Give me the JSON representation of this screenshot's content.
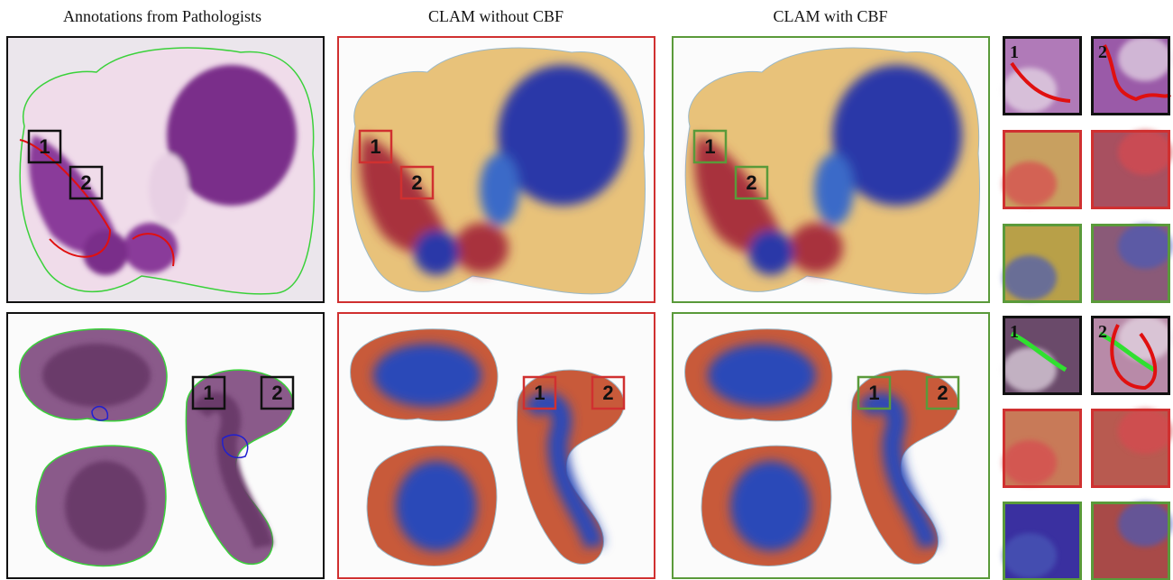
{
  "headers": [
    "Annotations from Pathologists",
    "CLAM without CBF",
    "CLAM with CBF"
  ],
  "region_labels": [
    "1",
    "2"
  ]
}
